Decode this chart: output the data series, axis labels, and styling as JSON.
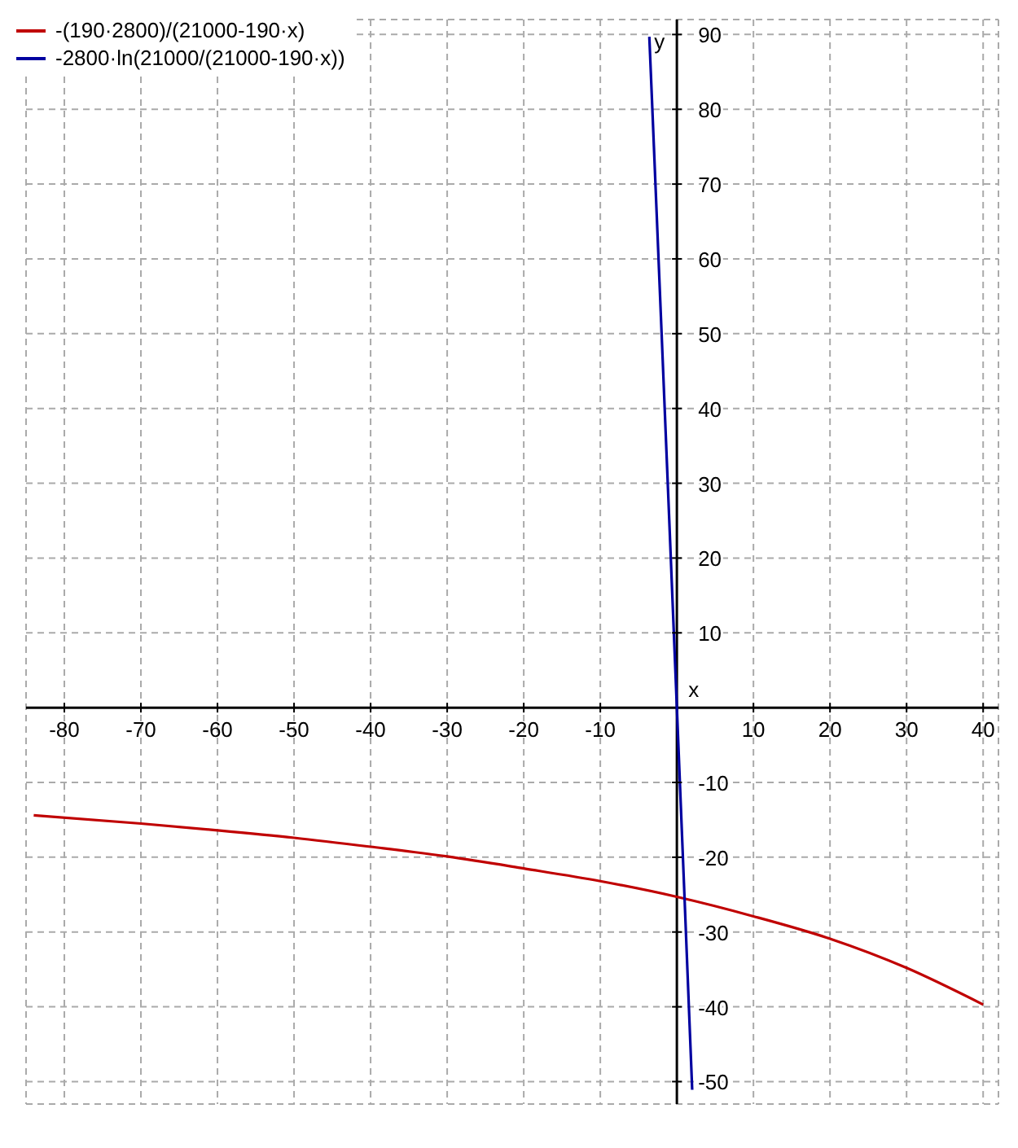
{
  "chart_data": {
    "type": "line",
    "xlabel": "x",
    "ylabel": "y",
    "series": [
      {
        "name": "-(190·2800)/(21000-190·x)",
        "color": "#c00000",
        "x": [
          -84,
          -70,
          -60,
          -50,
          -40,
          -30,
          -20,
          -10,
          0,
          10,
          20,
          30,
          40
        ],
        "values": [
          -14.4,
          -15.5,
          -16.4,
          -17.4,
          -18.6,
          -19.9,
          -21.5,
          -23.2,
          -25.3,
          -27.9,
          -30.9,
          -34.8,
          -39.7
        ]
      },
      {
        "name": "-2800·ln(21000/(21000-190·x))",
        "color": "#0000a0",
        "x": [
          -3.6,
          -3.5,
          -3,
          -2,
          -1,
          0,
          1,
          2
        ],
        "values": [
          89.7,
          87.3,
          75.0,
          50.2,
          25.2,
          0,
          -25.4,
          -51.1
        ]
      }
    ],
    "xlim": [
      -85,
      42
    ],
    "ylim": [
      -53,
      92
    ],
    "xticks": [
      -80,
      -70,
      -60,
      -50,
      -40,
      -30,
      -20,
      -10,
      10,
      20,
      30,
      40
    ],
    "yticks": [
      -50,
      -40,
      -30,
      -20,
      -10,
      10,
      20,
      30,
      40,
      50,
      60,
      70,
      80,
      90
    ],
    "grid": true,
    "legend": "top left",
    "marker": "none",
    "line_style": "solid"
  }
}
